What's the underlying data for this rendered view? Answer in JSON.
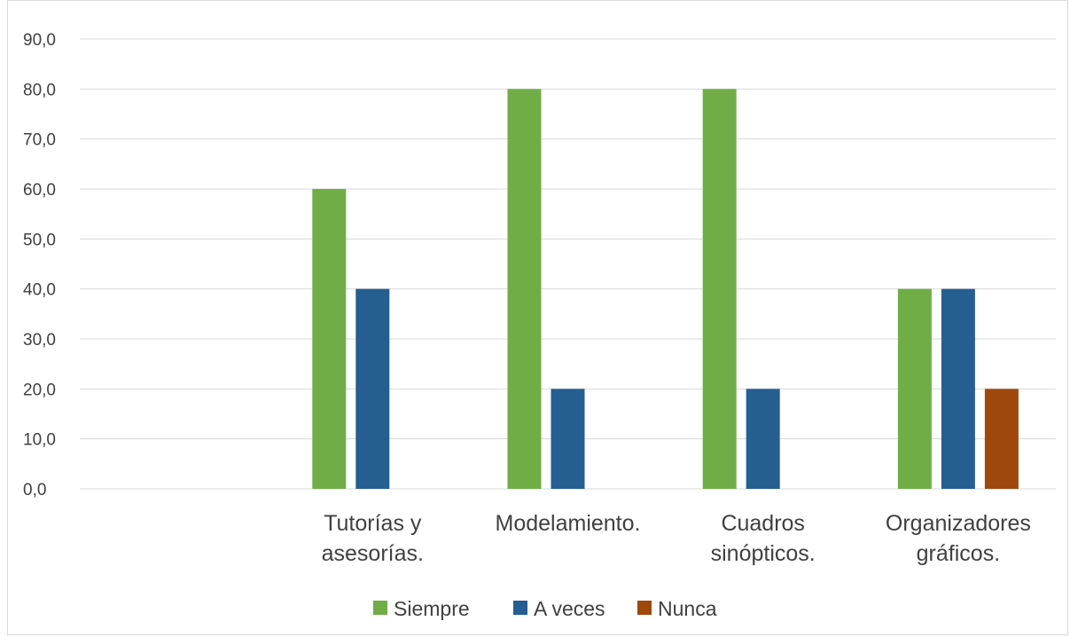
{
  "chart_data": {
    "type": "bar",
    "title": "",
    "xlabel": "",
    "ylabel": "",
    "ylim": [
      0,
      90
    ],
    "yticks": [
      "0,0",
      "10,0",
      "20,0",
      "30,0",
      "40,0",
      "50,0",
      "60,0",
      "70,0",
      "80,0",
      "90,0"
    ],
    "grid": true,
    "legend_position": "bottom",
    "categories": [
      "",
      "Tutorías y asesorías.",
      "Modelamiento.",
      "Cuadros sinópticos.",
      "Organizadores gráficos."
    ],
    "category_lines": [
      [],
      [
        "Tutorías y",
        "asesorías."
      ],
      [
        "Modelamiento."
      ],
      [
        "Cuadros",
        "sinópticos."
      ],
      [
        "Organizadores",
        "gráficos."
      ]
    ],
    "series": [
      {
        "name": "Siempre",
        "color": "#70ad47",
        "values": [
          null,
          60,
          80,
          80,
          40
        ]
      },
      {
        "name": "A veces",
        "color": "#255e91",
        "values": [
          null,
          40,
          20,
          20,
          40
        ]
      },
      {
        "name": "Nunca",
        "color": "#9e480e",
        "values": [
          null,
          null,
          null,
          null,
          20
        ]
      }
    ]
  }
}
